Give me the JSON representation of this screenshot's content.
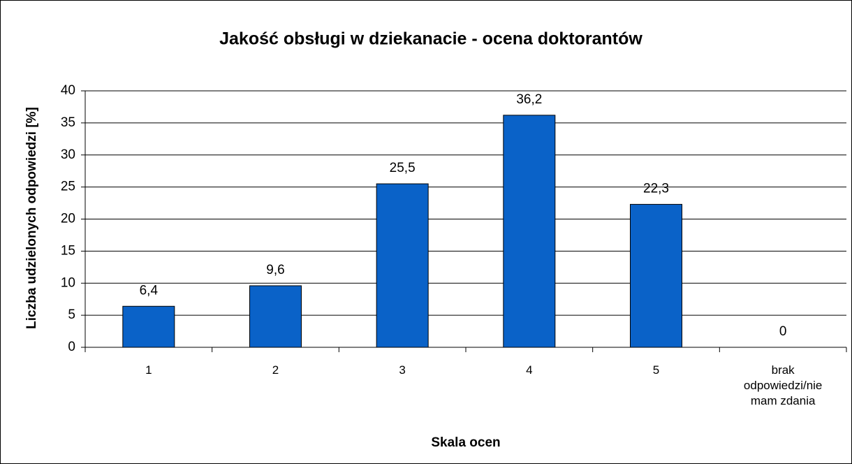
{
  "chart_data": {
    "type": "bar",
    "title": "Jakość obsługi w dziekanacie - ocena doktorantów",
    "x_label": "Skala ocen",
    "y_label": "Liczba udzielonych odpowiedzi [%]",
    "categories": [
      "1",
      "2",
      "3",
      "4",
      "5",
      "brak odpowiedzi/nie mam zdania"
    ],
    "values": [
      6.4,
      9.6,
      25.5,
      36.2,
      22.3,
      0
    ],
    "value_labels": [
      "6,4",
      "9,6",
      "25,5",
      "36,2",
      "22,3",
      "0"
    ],
    "color": "#0a62c8",
    "ylim": [
      0,
      40
    ],
    "yticks": [
      0,
      5,
      10,
      15,
      20,
      25,
      30,
      35,
      40
    ],
    "grid": true
  }
}
